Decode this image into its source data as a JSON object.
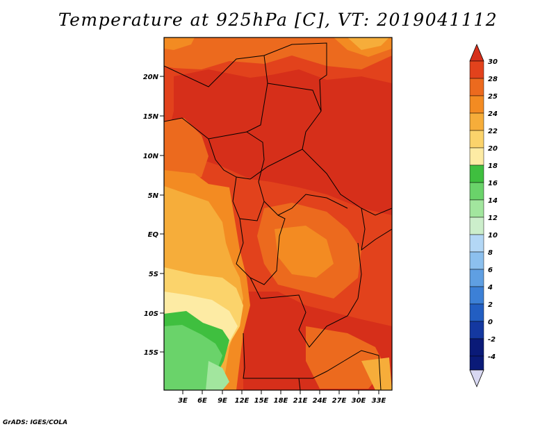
{
  "title": "Temperature at 925hPa [C], VT: 2019041112",
  "credit": "GrADS: IGES/COLA",
  "map": {
    "lat_ticks": [
      "20N",
      "15N",
      "10N",
      "5N",
      "EQ",
      "5S",
      "10S",
      "15S"
    ],
    "lon_ticks": [
      "3E",
      "6E",
      "9E",
      "12E",
      "15E",
      "18E",
      "21E",
      "24E",
      "27E",
      "30E",
      "33E"
    ]
  },
  "colorbar": {
    "labels": [
      "30",
      "28",
      "25",
      "24",
      "22",
      "20",
      "18",
      "16",
      "14",
      "12",
      "10",
      "8",
      "6",
      "4",
      "2",
      "0",
      "-2",
      "-4"
    ],
    "colors": {
      "c30": "#d62f1a",
      "c28": "#e2421c",
      "c25": "#ec6a1e",
      "c24": "#f38b22",
      "c22": "#f6ad3a",
      "c20": "#fbd36b",
      "c18": "#fdeba4",
      "c16": "#3fbf3f",
      "c14": "#6ad36a",
      "c12": "#a2e69e",
      "c10": "#cceecb",
      "c8": "#b3d7f5",
      "c6": "#8cc0ee",
      "c4": "#5f9fe2",
      "c2": "#3c80d6",
      "c0": "#225ec2",
      "cm2": "#1438a0",
      "cm4": "#0a1a78",
      "under": "#d8d8f2"
    }
  }
}
